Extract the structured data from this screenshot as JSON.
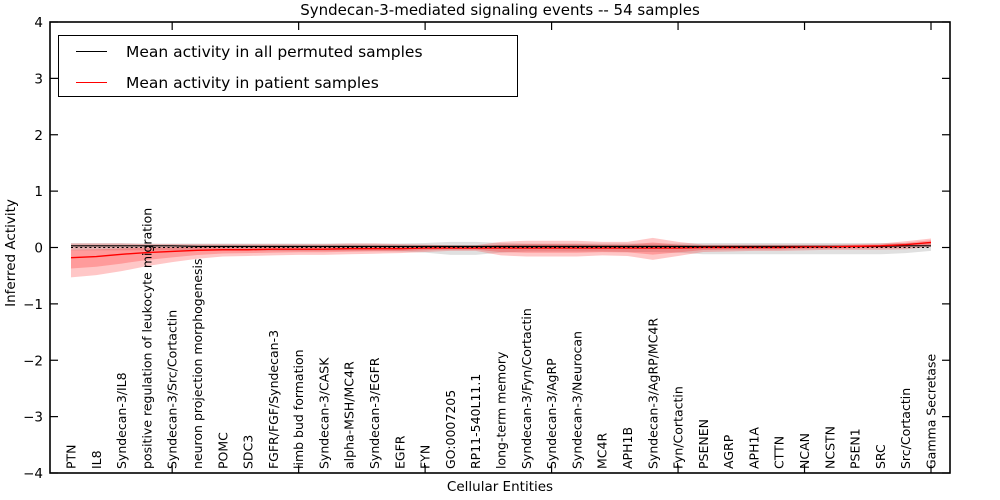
{
  "figure": {
    "title": "Syndecan-3-mediated signaling events -- 54 samples",
    "xlabel": "Cellular Entities",
    "ylabel": "Inferred Activity"
  },
  "legend": {
    "items": [
      {
        "label": "Mean activity in all permuted samples",
        "color": "#000000"
      },
      {
        "label": "Mean activity in patient samples",
        "color": "#ff0000"
      }
    ]
  },
  "chart_data": {
    "type": "line",
    "title": "Syndecan-3-mediated signaling events -- 54 samples",
    "xlabel": "Cellular Entities",
    "ylabel": "Inferred Activity",
    "ylim": [
      -4,
      4
    ],
    "yticks": [
      -4,
      -3,
      -2,
      -1,
      0,
      1,
      2,
      3,
      4
    ],
    "xtick_indices": [
      4,
      9,
      14,
      19,
      24,
      29,
      34
    ],
    "grid": false,
    "legend_position": "upper left",
    "categories": [
      "PTN",
      "IL8",
      "Syndecan-3/IL8",
      "positive regulation of leukocyte migration",
      "Syndecan-3/Src/Cortactin",
      "neuron projection morphogenesis",
      "POMC",
      "SDC3",
      "FGFR/FGF/Syndecan-3",
      "limb bud formation",
      "Syndecan-3/CASK",
      "alpha-MSH/MC4R",
      "Syndecan-3/EGFR",
      "EGFR",
      "FYN",
      "GO:0007205",
      "RP11-540L11.1",
      "long-term memory",
      "Syndecan-3/Fyn/Cortactin",
      "Syndecan-3/AgRP",
      "Syndecan-3/Neurocan",
      "MC4R",
      "APH1B",
      "Syndecan-3/AgRP/MC4R",
      "Fyn/Cortactin",
      "PSENEN",
      "AGRP",
      "APH1A",
      "CTTN",
      "NCAN",
      "NCSTN",
      "PSEN1",
      "SRC",
      "Src/Cortactin",
      "Gamma Secretase"
    ],
    "series": [
      {
        "name": "Mean activity in all permuted samples",
        "color": "#000000",
        "values": [
          0.03,
          0.03,
          0.03,
          0.03,
          0.03,
          0.02,
          0.02,
          0.02,
          0.02,
          0.02,
          0.02,
          0.02,
          0.02,
          0.02,
          0.02,
          0.02,
          0.02,
          0.02,
          0.02,
          0.02,
          0.02,
          0.02,
          0.02,
          0.02,
          0.02,
          0.02,
          0.02,
          0.02,
          0.02,
          0.02,
          0.02,
          0.02,
          0.02,
          0.03,
          0.03
        ]
      },
      {
        "name": "Mean activity in patient samples",
        "color": "#ff0000",
        "values": [
          -0.18,
          -0.16,
          -0.12,
          -0.09,
          -0.07,
          -0.05,
          -0.04,
          -0.04,
          -0.03,
          -0.03,
          -0.03,
          -0.02,
          -0.02,
          -0.02,
          -0.01,
          -0.01,
          -0.01,
          -0.01,
          -0.01,
          -0.01,
          -0.01,
          -0.01,
          -0.01,
          -0.01,
          -0.01,
          0.0,
          0.0,
          0.0,
          0.0,
          0.01,
          0.01,
          0.02,
          0.03,
          0.05,
          0.09
        ]
      }
    ],
    "bands": [
      {
        "name": "permuted-samples-std-band",
        "color": "#000000",
        "opacity": 0.12,
        "upper": [
          0.08,
          0.08,
          0.08,
          0.07,
          0.07,
          0.07,
          0.07,
          0.07,
          0.07,
          0.07,
          0.07,
          0.07,
          0.07,
          0.07,
          0.08,
          0.1,
          0.1,
          0.08,
          0.07,
          0.07,
          0.07,
          0.07,
          0.07,
          0.07,
          0.07,
          0.08,
          0.08,
          0.08,
          0.08,
          0.08,
          0.08,
          0.08,
          0.08,
          0.08,
          0.08
        ],
        "lower": [
          -0.05,
          -0.05,
          -0.05,
          -0.05,
          -0.05,
          -0.05,
          -0.05,
          -0.05,
          -0.06,
          -0.06,
          -0.06,
          -0.06,
          -0.06,
          -0.07,
          -0.09,
          -0.13,
          -0.13,
          -0.09,
          -0.07,
          -0.07,
          -0.07,
          -0.07,
          -0.08,
          -0.08,
          -0.09,
          -0.12,
          -0.12,
          -0.12,
          -0.12,
          -0.12,
          -0.12,
          -0.12,
          -0.12,
          -0.1,
          -0.06
        ]
      },
      {
        "name": "patient-samples-std-band",
        "color": "#ff0000",
        "opacity": 0.22,
        "layered": true,
        "upper": [
          0.07,
          0.07,
          0.07,
          0.06,
          0.06,
          0.06,
          0.06,
          0.06,
          0.06,
          0.06,
          0.06,
          0.07,
          0.07,
          0.06,
          0.05,
          0.04,
          0.04,
          0.1,
          0.12,
          0.12,
          0.12,
          0.1,
          0.1,
          0.17,
          0.1,
          0.05,
          0.05,
          0.05,
          0.05,
          0.05,
          0.05,
          0.06,
          0.07,
          0.11,
          0.16
        ],
        "lower": [
          -0.53,
          -0.49,
          -0.42,
          -0.33,
          -0.26,
          -0.2,
          -0.16,
          -0.15,
          -0.14,
          -0.13,
          -0.13,
          -0.12,
          -0.11,
          -0.1,
          -0.08,
          -0.06,
          -0.06,
          -0.14,
          -0.16,
          -0.16,
          -0.16,
          -0.14,
          -0.15,
          -0.22,
          -0.15,
          -0.08,
          -0.07,
          -0.06,
          -0.06,
          -0.05,
          -0.04,
          -0.04,
          -0.04,
          -0.03,
          0.01
        ]
      }
    ],
    "zero_line": {
      "value": 0,
      "style": "dashed",
      "color": "#000000"
    }
  }
}
